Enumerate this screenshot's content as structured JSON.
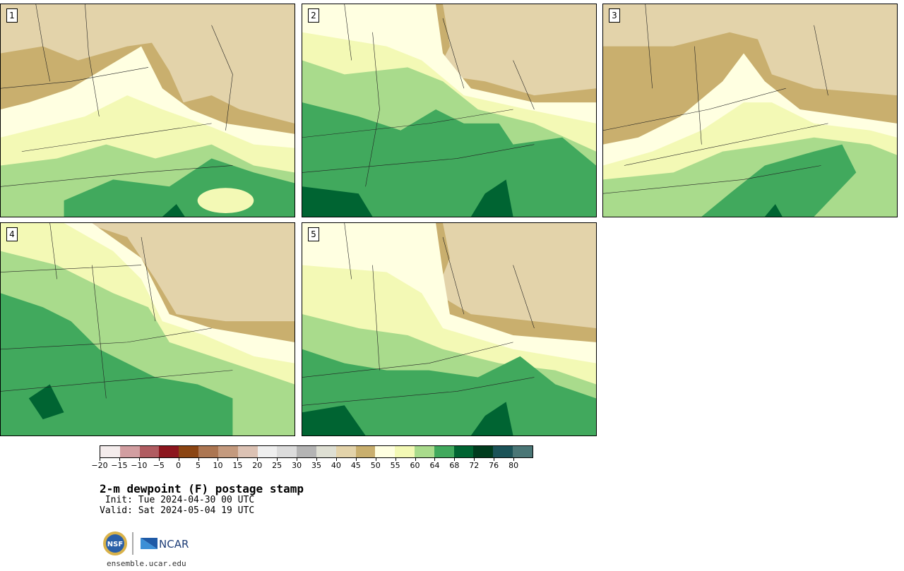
{
  "panels": [
    {
      "number": "1"
    },
    {
      "number": "2"
    },
    {
      "number": "3"
    },
    {
      "number": "4"
    },
    {
      "number": "5"
    }
  ],
  "colorbar": {
    "colors": [
      "#f4ecec",
      "#d29ea1",
      "#b05c61",
      "#8c161e",
      "#8b4513",
      "#ac7652",
      "#c49a7e",
      "#dcc2b4",
      "#efefef",
      "#dcdcdc",
      "#b4b4b4",
      "#dedfd3",
      "#e3d3aa",
      "#c9af6e",
      "#ffffe1",
      "#f3f9b5",
      "#a9db8c",
      "#41a95d",
      "#006432",
      "#003c1e",
      "#1b5358",
      "#4a7676"
    ],
    "labels": [
      "−20",
      "−15",
      "−10",
      "−5",
      "0",
      "5",
      "10",
      "15",
      "20",
      "25",
      "30",
      "35",
      "40",
      "45",
      "50",
      "55",
      "60",
      "64",
      "68",
      "72",
      "76",
      "80"
    ]
  },
  "title": "2-m dewpoint (F) postage stamp",
  "init": " Init: Tue 2024-04-30 00 UTC",
  "valid": "Valid: Sat 2024-05-04 19 UTC",
  "logo": {
    "left_text": "NSF",
    "right_text": "NCAR"
  },
  "url": "ensemble.ucar.edu"
}
